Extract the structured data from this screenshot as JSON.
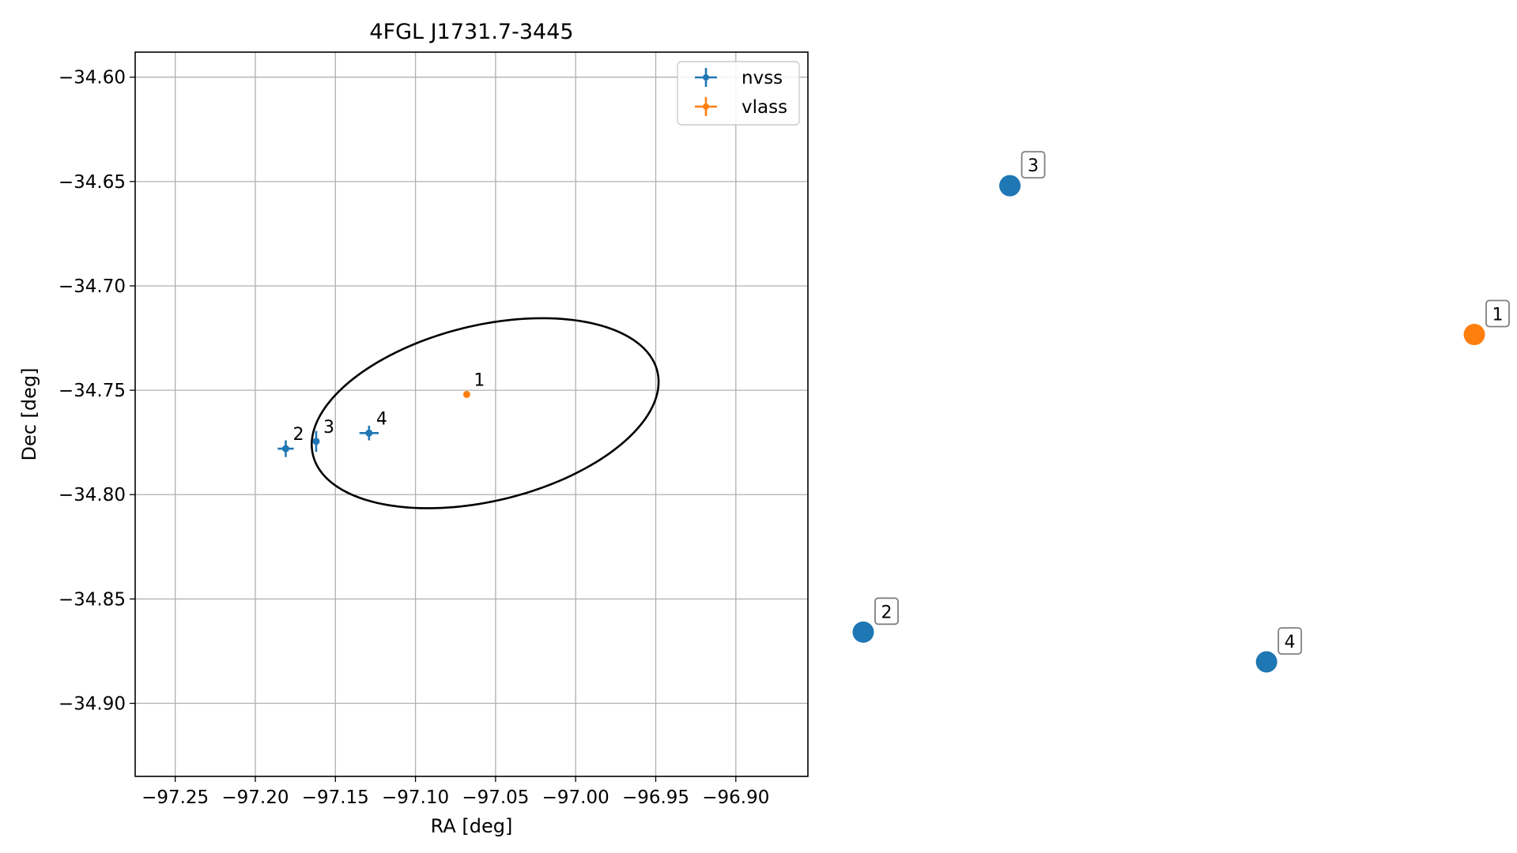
{
  "chart_data": [
    {
      "type": "scatter",
      "title": "4FGL J1731.7-3445",
      "xlabel": "RA [deg]",
      "ylabel": "Dec [deg]",
      "xlim": [
        -97.275,
        -96.855
      ],
      "ylim": [
        -34.935,
        -34.588
      ],
      "grid": true,
      "legend_position": "upper right",
      "x_ticks": [
        -97.25,
        -97.2,
        -97.15,
        -97.1,
        -97.05,
        -97.0,
        -96.95,
        -96.9
      ],
      "y_ticks": [
        -34.6,
        -34.65,
        -34.7,
        -34.75,
        -34.8,
        -34.85,
        -34.9
      ],
      "x_tick_labels": [
        "−97.25",
        "−97.20",
        "−97.15",
        "−97.10",
        "−97.05",
        "−97.00",
        "−96.95",
        "−96.90"
      ],
      "y_tick_labels": [
        "−34.60",
        "−34.65",
        "−34.70",
        "−34.75",
        "−34.80",
        "−34.85",
        "−34.90"
      ],
      "series": [
        {
          "name": "nvss",
          "color": "#1f77b4",
          "points": [
            {
              "label": "2",
              "ra": -97.181,
              "dec": -34.778,
              "ra_err": 0.005,
              "dec_err": 0.004
            },
            {
              "label": "3",
              "ra": -97.162,
              "dec": -34.7745,
              "ra_err": 0.0015,
              "dec_err": 0.005
            },
            {
              "label": "4",
              "ra": -97.129,
              "dec": -34.7705,
              "ra_err": 0.006,
              "dec_err": 0.0035
            }
          ]
        },
        {
          "name": "vlass",
          "color": "#ff7f0e",
          "points": [
            {
              "label": "1",
              "ra": -97.068,
              "dec": -34.752,
              "ra_err": 0.0,
              "dec_err": 0.0
            }
          ]
        }
      ],
      "ellipse": {
        "center_ra": -97.0565,
        "center_dec": -34.761,
        "semi_major_ra": 0.1095,
        "semi_minor": 0.0425,
        "angle_deg": 9.3,
        "color": "#000000"
      }
    },
    {
      "type": "scatter",
      "points": [
        {
          "label": "3",
          "color": "#1f77b4",
          "x": 0.24,
          "y": 0.96
        },
        {
          "label": "1",
          "color": "#ff7f0e",
          "x": 1.0,
          "y": 0.66
        },
        {
          "label": "2",
          "color": "#1f77b4",
          "x": 0.0,
          "y": 0.06
        },
        {
          "label": "4",
          "color": "#1f77b4",
          "x": 0.66,
          "y": 0.0
        }
      ]
    }
  ]
}
